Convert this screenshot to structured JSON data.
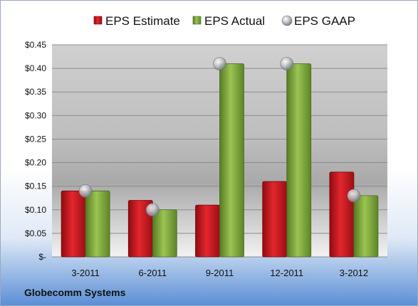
{
  "chart_data": {
    "type": "bar",
    "categories": [
      "3-2011",
      "6-2011",
      "9-2011",
      "12-2011",
      "3-2012"
    ],
    "series": [
      {
        "name": "EPS Estimate",
        "values": [
          0.14,
          0.12,
          0.11,
          0.16,
          0.18
        ],
        "color": "#c0141b"
      },
      {
        "name": "EPS Actual",
        "values": [
          0.14,
          0.1,
          0.41,
          0.41,
          0.13
        ],
        "color": "#7da33b"
      },
      {
        "name": "EPS GAAP",
        "values": [
          0.14,
          0.1,
          0.41,
          0.41,
          0.13
        ],
        "color": "#b8bcc2",
        "marker": "sphere"
      }
    ],
    "ylim": [
      0,
      0.45
    ],
    "yticks": [
      {
        "value": 0,
        "label": "$-"
      },
      {
        "value": 0.05,
        "label": "$0.05"
      },
      {
        "value": 0.1,
        "label": "$0.10"
      },
      {
        "value": 0.15,
        "label": "$0.15"
      },
      {
        "value": 0.2,
        "label": "$0.20"
      },
      {
        "value": 0.25,
        "label": "$0.25"
      },
      {
        "value": 0.3,
        "label": "$0.30"
      },
      {
        "value": 0.35,
        "label": "$0.35"
      },
      {
        "value": 0.4,
        "label": "$0.40"
      },
      {
        "value": 0.45,
        "label": "$0.45"
      }
    ],
    "grid": true,
    "legend_position": "top"
  },
  "footer": {
    "company": "Globecomm Systems"
  }
}
